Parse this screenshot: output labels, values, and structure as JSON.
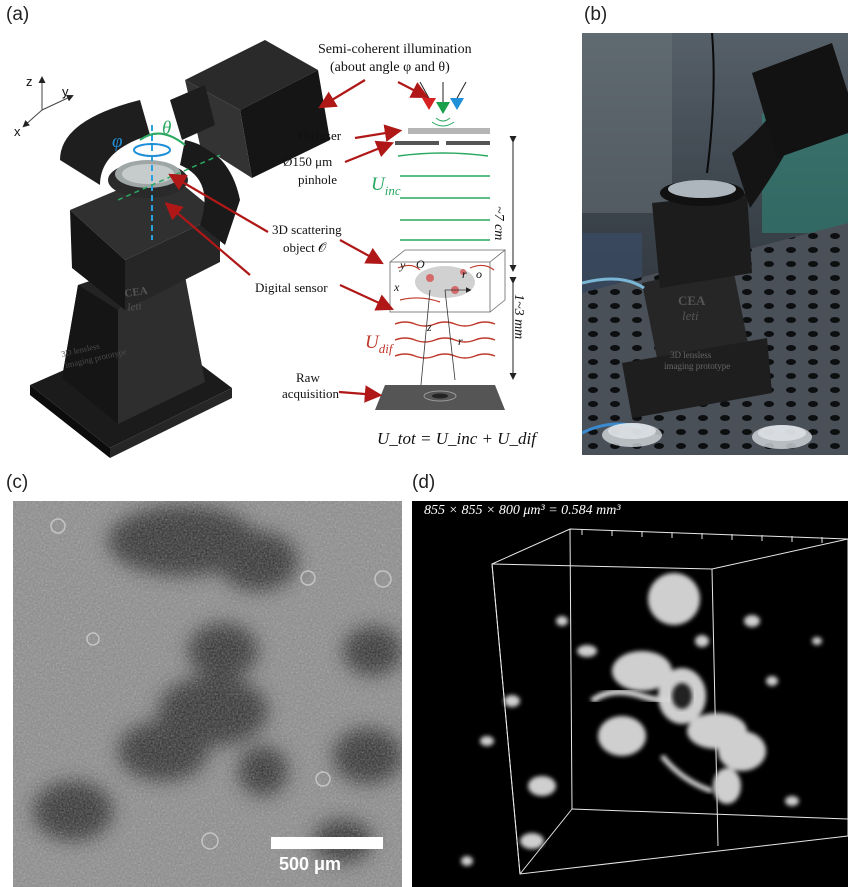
{
  "panels": {
    "a": "(a)",
    "b": "(b)",
    "c": "(c)",
    "d": "(d)"
  },
  "panel_a": {
    "axes": {
      "z": "z",
      "y": "y",
      "x": "x"
    },
    "angles": {
      "phi": "φ",
      "theta": "θ"
    },
    "illumination": [
      "Semi-coherent illumination",
      "(about angle φ and θ)"
    ],
    "diffuser": "Diffuser",
    "pinhole": [
      "Ø150 μm",
      "pinhole"
    ],
    "u_inc": "U",
    "u_inc_sub": "inc",
    "scattering": [
      "3D scattering",
      "object 𝒪"
    ],
    "sensor": "Digital sensor",
    "raw": [
      "Raw",
      "acquisition"
    ],
    "u_dif": "U",
    "u_dif_sub": "dif",
    "dist1": "~7 cm",
    "dist2": "1~3 mm",
    "obj_labels": {
      "y": "y",
      "o": "O",
      "x": "x",
      "z": "z",
      "r0": "r⃗o",
      "r": "r⃗"
    },
    "equation": "U_tot = U_inc + U_dif",
    "device_text": [
      "CEA",
      "leti",
      "3D lensless",
      "imaging prototype"
    ]
  },
  "panel_b": {
    "device_text": [
      "CEA",
      "leti",
      "3D lensless",
      "imaging prototype"
    ]
  },
  "panel_c": {
    "scalebar": "500 μm"
  },
  "panel_d": {
    "volume": "855 × 855 × 800  μm³ = 0.584 mm³"
  },
  "colors": {
    "arrow_red": "#b01818",
    "green": "#2aa860",
    "blue": "#1f8fd8",
    "red_wave": "#c0392b"
  }
}
